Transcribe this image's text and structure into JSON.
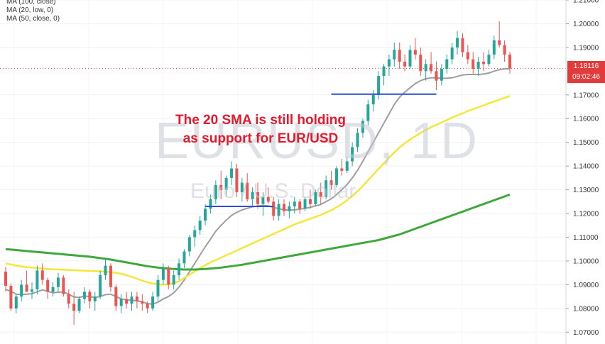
{
  "legend": {
    "ma100": "MA (100, close)",
    "ma20": "MA (20, low, 0)",
    "ma50": "MA (50, close, 0)"
  },
  "annotation": {
    "line1": "The 20 SMA is still holding",
    "line2": "as support for EUR/USD"
  },
  "watermark": {
    "symbol": "EURUSD, 1D",
    "description": "Euro / U.S. Dollar"
  },
  "price_axis": {
    "ticks": [
      "1.21000",
      "1.20000",
      "1.19000",
      "1.17000",
      "1.16000",
      "1.15000",
      "1.14000",
      "1.13000",
      "1.12000",
      "1.11000",
      "1.10000",
      "1.09000",
      "1.08000",
      "1.07000"
    ],
    "last_price": "1.18116",
    "countdown": "09:02:46"
  },
  "colors": {
    "up": "#26a69a",
    "down": "#ef5350",
    "ma20": "#9e9e9e",
    "ma50": "#f5e63a",
    "ma100": "#3fa83a",
    "support": "#2c4ed6",
    "annotation": "#e6182d"
  },
  "chart_data": {
    "type": "candlestick",
    "symbol": "EURUSD",
    "interval": "1D",
    "ylim": [
      1.065,
      1.21
    ],
    "candles": [
      [
        1.0955,
        1.0975,
        1.087,
        1.0895
      ],
      [
        1.0895,
        1.0905,
        1.079,
        1.08
      ],
      [
        1.08,
        1.086,
        1.078,
        1.085
      ],
      [
        1.085,
        1.092,
        1.083,
        1.09
      ],
      [
        1.09,
        1.096,
        1.088,
        1.087
      ],
      [
        1.087,
        1.091,
        1.084,
        1.088
      ],
      [
        1.088,
        1.098,
        1.086,
        1.096
      ],
      [
        1.096,
        1.099,
        1.09,
        1.092
      ],
      [
        1.092,
        1.093,
        1.084,
        1.087
      ],
      [
        1.087,
        1.091,
        1.085,
        1.089
      ],
      [
        1.089,
        1.095,
        1.087,
        1.093
      ],
      [
        1.093,
        1.094,
        1.085,
        1.086
      ],
      [
        1.086,
        1.088,
        1.08,
        1.082
      ],
      [
        1.082,
        1.087,
        1.073,
        1.079
      ],
      [
        1.079,
        1.085,
        1.078,
        1.084
      ],
      [
        1.084,
        1.089,
        1.082,
        1.087
      ],
      [
        1.087,
        1.088,
        1.08,
        1.083
      ],
      [
        1.083,
        1.087,
        1.079,
        1.085
      ],
      [
        1.085,
        1.096,
        1.084,
        1.094
      ],
      [
        1.094,
        1.101,
        1.092,
        1.098
      ],
      [
        1.098,
        1.099,
        1.087,
        1.089
      ],
      [
        1.089,
        1.09,
        1.079,
        1.081
      ],
      [
        1.081,
        1.086,
        1.078,
        1.084
      ],
      [
        1.084,
        1.087,
        1.08,
        1.082
      ],
      [
        1.082,
        1.087,
        1.079,
        1.085
      ],
      [
        1.085,
        1.087,
        1.08,
        1.083
      ],
      [
        1.083,
        1.086,
        1.079,
        1.082
      ],
      [
        1.082,
        1.083,
        1.078,
        1.08
      ],
      [
        1.08,
        1.087,
        1.079,
        1.085
      ],
      [
        1.085,
        1.094,
        1.083,
        1.092
      ],
      [
        1.092,
        1.099,
        1.09,
        1.097
      ],
      [
        1.097,
        1.098,
        1.088,
        1.09
      ],
      [
        1.09,
        1.096,
        1.088,
        1.094
      ],
      [
        1.094,
        1.101,
        1.092,
        1.099
      ],
      [
        1.099,
        1.105,
        1.097,
        1.104
      ],
      [
        1.104,
        1.111,
        1.102,
        1.11
      ],
      [
        1.11,
        1.115,
        1.106,
        1.113
      ],
      [
        1.113,
        1.119,
        1.111,
        1.117
      ],
      [
        1.117,
        1.124,
        1.115,
        1.122
      ],
      [
        1.122,
        1.128,
        1.12,
        1.126
      ],
      [
        1.126,
        1.134,
        1.124,
        1.132
      ],
      [
        1.132,
        1.138,
        1.126,
        1.13
      ],
      [
        1.13,
        1.136,
        1.127,
        1.135
      ],
      [
        1.135,
        1.142,
        1.132,
        1.139
      ],
      [
        1.139,
        1.141,
        1.127,
        1.129
      ],
      [
        1.129,
        1.135,
        1.125,
        1.133
      ],
      [
        1.133,
        1.137,
        1.125,
        1.126
      ],
      [
        1.126,
        1.131,
        1.123,
        1.129
      ],
      [
        1.129,
        1.133,
        1.122,
        1.124
      ],
      [
        1.124,
        1.129,
        1.119,
        1.127
      ],
      [
        1.127,
        1.131,
        1.124,
        1.125
      ],
      [
        1.125,
        1.127,
        1.117,
        1.119
      ],
      [
        1.119,
        1.126,
        1.117,
        1.124
      ],
      [
        1.124,
        1.126,
        1.119,
        1.121
      ],
      [
        1.121,
        1.125,
        1.118,
        1.123
      ],
      [
        1.123,
        1.127,
        1.12,
        1.125
      ],
      [
        1.125,
        1.126,
        1.12,
        1.122
      ],
      [
        1.122,
        1.127,
        1.121,
        1.126
      ],
      [
        1.126,
        1.13,
        1.122,
        1.124
      ],
      [
        1.124,
        1.13,
        1.123,
        1.129
      ],
      [
        1.129,
        1.133,
        1.124,
        1.127
      ],
      [
        1.127,
        1.136,
        1.126,
        1.134
      ],
      [
        1.134,
        1.138,
        1.13,
        1.132
      ],
      [
        1.132,
        1.14,
        1.131,
        1.139
      ],
      [
        1.139,
        1.143,
        1.136,
        1.138
      ],
      [
        1.138,
        1.144,
        1.137,
        1.142
      ],
      [
        1.142,
        1.15,
        1.14,
        1.148
      ],
      [
        1.148,
        1.156,
        1.146,
        1.154
      ],
      [
        1.154,
        1.16,
        1.152,
        1.159
      ],
      [
        1.159,
        1.168,
        1.157,
        1.166
      ],
      [
        1.166,
        1.172,
        1.163,
        1.17
      ],
      [
        1.17,
        1.18,
        1.168,
        1.178
      ],
      [
        1.178,
        1.183,
        1.174,
        1.182
      ],
      [
        1.182,
        1.187,
        1.178,
        1.185
      ],
      [
        1.185,
        1.192,
        1.182,
        1.189
      ],
      [
        1.189,
        1.192,
        1.181,
        1.184
      ],
      [
        1.184,
        1.187,
        1.18,
        1.182
      ],
      [
        1.182,
        1.191,
        1.181,
        1.189
      ],
      [
        1.189,
        1.194,
        1.185,
        1.187
      ],
      [
        1.187,
        1.19,
        1.178,
        1.18
      ],
      [
        1.18,
        1.185,
        1.176,
        1.183
      ],
      [
        1.183,
        1.188,
        1.179,
        1.18
      ],
      [
        1.18,
        1.184,
        1.172,
        1.176
      ],
      [
        1.176,
        1.183,
        1.174,
        1.181
      ],
      [
        1.181,
        1.187,
        1.179,
        1.185
      ],
      [
        1.185,
        1.192,
        1.183,
        1.19
      ],
      [
        1.19,
        1.197,
        1.187,
        1.194
      ],
      [
        1.194,
        1.196,
        1.186,
        1.188
      ],
      [
        1.188,
        1.191,
        1.183,
        1.185
      ],
      [
        1.185,
        1.188,
        1.179,
        1.181
      ],
      [
        1.181,
        1.186,
        1.178,
        1.184
      ],
      [
        1.184,
        1.188,
        1.18,
        1.183
      ],
      [
        1.183,
        1.189,
        1.182,
        1.187
      ],
      [
        1.187,
        1.195,
        1.185,
        1.193
      ],
      [
        1.193,
        1.201,
        1.19,
        1.191
      ],
      [
        1.191,
        1.193,
        1.184,
        1.187
      ],
      [
        1.187,
        1.188,
        1.179,
        1.1812
      ]
    ],
    "series": [
      {
        "name": "MA (20, low, 0)",
        "values": [
          1.088,
          1.0872,
          1.086,
          1.0858,
          1.086,
          1.0862,
          1.087,
          1.0878,
          1.0872,
          1.0866,
          1.0868,
          1.087,
          1.086,
          1.0848,
          1.0846,
          1.0852,
          1.085,
          1.0846,
          1.085,
          1.0858,
          1.086,
          1.085,
          1.084,
          1.0836,
          1.0834,
          1.0832,
          1.0828,
          1.082,
          1.0818,
          1.0826,
          1.084,
          1.085,
          1.0866,
          1.089,
          1.092,
          1.0955,
          1.099,
          1.1025,
          1.106,
          1.1092,
          1.1125,
          1.115,
          1.1172,
          1.1192,
          1.1205,
          1.1215,
          1.1222,
          1.1228,
          1.1232,
          1.1234,
          1.1232,
          1.1226,
          1.122,
          1.1216,
          1.1214,
          1.1216,
          1.1218,
          1.1222,
          1.1226,
          1.1232,
          1.1238,
          1.125,
          1.1262,
          1.128,
          1.13,
          1.1322,
          1.135,
          1.1382,
          1.142,
          1.146,
          1.15,
          1.154,
          1.158,
          1.162,
          1.166,
          1.169,
          1.1712,
          1.173,
          1.1748,
          1.176,
          1.1768,
          1.1772,
          1.1772,
          1.177,
          1.177,
          1.1772,
          1.1778,
          1.1784,
          1.1786,
          1.1786,
          1.1786,
          1.1788,
          1.1792,
          1.18,
          1.1806,
          1.181,
          1.181
        ]
      },
      {
        "name": "MA (50, close, 0)",
        "values": [
          1.099,
          1.0985,
          1.098,
          1.0977,
          1.0974,
          1.0972,
          1.097,
          1.0968,
          1.0966,
          1.0965,
          1.0964,
          1.0963,
          1.0962,
          1.0961,
          1.096,
          1.0959,
          1.0958,
          1.0957,
          1.0956,
          1.0955,
          1.0953,
          1.095,
          1.0946,
          1.094,
          1.0933,
          1.0925,
          1.0917,
          1.091,
          1.0905,
          1.0902,
          1.09,
          1.0902,
          1.0906,
          1.0915,
          1.0928,
          1.0942,
          1.0956,
          1.097,
          1.0982,
          1.0994,
          1.1004,
          1.1014,
          1.1024,
          1.1034,
          1.1044,
          1.1054,
          1.1064,
          1.1074,
          1.1084,
          1.1094,
          1.1104,
          1.1114,
          1.1124,
          1.1134,
          1.1144,
          1.1154,
          1.1162,
          1.117,
          1.1178,
          1.1186,
          1.1194,
          1.1204,
          1.1214,
          1.1226,
          1.124,
          1.1256,
          1.1274,
          1.1294,
          1.1316,
          1.134,
          1.1364,
          1.1388,
          1.1412,
          1.1436,
          1.1458,
          1.1478,
          1.1496,
          1.1512,
          1.1526,
          1.154,
          1.1552,
          1.1564,
          1.1574,
          1.1584,
          1.1594,
          1.1604,
          1.1614,
          1.1622,
          1.1632,
          1.164,
          1.1648,
          1.1656,
          1.1664,
          1.1672,
          1.168,
          1.1688,
          1.1695
        ]
      },
      {
        "name": "MA (100, close)",
        "values": [
          1.105,
          1.1048,
          1.1046,
          1.1044,
          1.1042,
          1.104,
          1.1038,
          1.1036,
          1.1034,
          1.1032,
          1.103,
          1.1028,
          1.1026,
          1.1024,
          1.1022,
          1.102,
          1.1018,
          1.1015,
          1.1012,
          1.1009,
          1.1006,
          1.1002,
          1.0998,
          1.0994,
          1.099,
          1.0986,
          1.0982,
          1.0978,
          1.0975,
          1.0972,
          1.097,
          1.0968,
          1.0966,
          1.0965,
          1.0964,
          1.0964,
          1.0964,
          1.0965,
          1.0966,
          1.0968,
          1.097,
          1.0972,
          1.0975,
          1.0978,
          1.0981,
          1.0984,
          1.0988,
          1.0992,
          1.0996,
          1.1,
          1.1004,
          1.1008,
          1.1012,
          1.1016,
          1.102,
          1.1024,
          1.1028,
          1.1032,
          1.1036,
          1.104,
          1.1044,
          1.1048,
          1.1052,
          1.1056,
          1.106,
          1.1064,
          1.1068,
          1.1072,
          1.1076,
          1.108,
          1.1084,
          1.1088,
          1.1094,
          1.11,
          1.1106,
          1.1112,
          1.112,
          1.1128,
          1.1136,
          1.1144,
          1.1152,
          1.116,
          1.1168,
          1.1176,
          1.1184,
          1.1192,
          1.12,
          1.1208,
          1.1216,
          1.1224,
          1.1232,
          1.124,
          1.1248,
          1.1256,
          1.1264,
          1.1272,
          1.128
        ]
      }
    ],
    "horizontal_lines": [
      {
        "label": "",
        "y": 1.123,
        "from_index": 38,
        "to_index": 51
      },
      {
        "label": "",
        "y": 1.1703,
        "from_index": 62,
        "to_index": 82
      }
    ]
  }
}
